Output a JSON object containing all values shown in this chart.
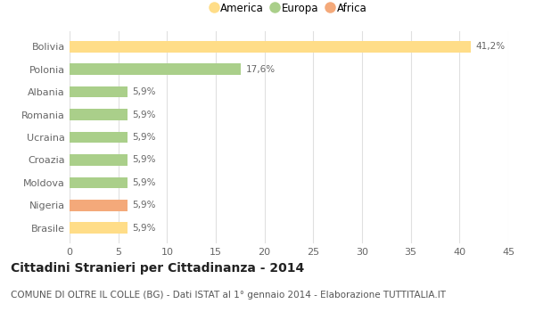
{
  "categories": [
    "Bolivia",
    "Polonia",
    "Albania",
    "Romania",
    "Ucraina",
    "Croazia",
    "Moldova",
    "Nigeria",
    "Brasile"
  ],
  "values": [
    41.2,
    17.6,
    5.9,
    5.9,
    5.9,
    5.9,
    5.9,
    5.9,
    5.9
  ],
  "labels": [
    "41,2%",
    "17,6%",
    "5,9%",
    "5,9%",
    "5,9%",
    "5,9%",
    "5,9%",
    "5,9%",
    "5,9%"
  ],
  "colors": [
    "#FFDD88",
    "#AACF8A",
    "#AACF8A",
    "#AACF8A",
    "#AACF8A",
    "#AACF8A",
    "#AACF8A",
    "#F4A97A",
    "#FFDD88"
  ],
  "legend": [
    {
      "label": "America",
      "color": "#FFDD88"
    },
    {
      "label": "Europa",
      "color": "#AACF8A"
    },
    {
      "label": "Africa",
      "color": "#F4A97A"
    }
  ],
  "xlim": [
    0,
    45
  ],
  "xticks": [
    0,
    5,
    10,
    15,
    20,
    25,
    30,
    35,
    40,
    45
  ],
  "title": "Cittadini Stranieri per Cittadinanza - 2014",
  "subtitle": "COMUNE DI OLTRE IL COLLE (BG) - Dati ISTAT al 1° gennaio 2014 - Elaborazione TUTTITALIA.IT",
  "bg_color": "#FFFFFF",
  "grid_color": "#E0E0E0",
  "bar_height": 0.5,
  "title_fontsize": 10,
  "subtitle_fontsize": 7.5,
  "label_fontsize": 7.5,
  "tick_fontsize": 8,
  "legend_fontsize": 8.5
}
